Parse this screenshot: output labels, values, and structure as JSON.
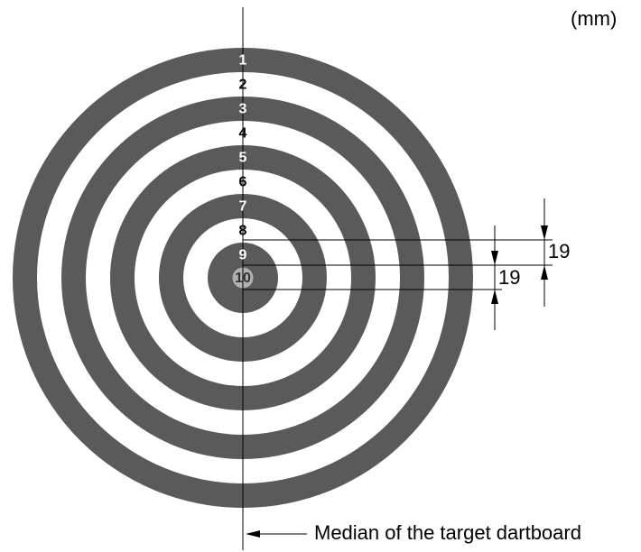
{
  "unit": "(mm)",
  "rings": [
    "1",
    "2",
    "3",
    "4",
    "5",
    "6",
    "7",
    "8",
    "9",
    "10"
  ],
  "dimensions": [
    "19",
    "19"
  ],
  "caption": "Median of the target dartboard"
}
